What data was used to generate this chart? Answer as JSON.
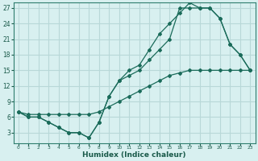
{
  "xlabel": "Humidex (Indice chaleur)",
  "bg_color": "#d8f0f0",
  "grid_color": "#b8d8d8",
  "line_color": "#1a6b5a",
  "xlim": [
    -0.5,
    23.5
  ],
  "ylim": [
    1,
    28
  ],
  "xticks": [
    0,
    1,
    2,
    3,
    4,
    5,
    6,
    7,
    8,
    9,
    10,
    11,
    12,
    13,
    14,
    15,
    16,
    17,
    18,
    19,
    20,
    21,
    22,
    23
  ],
  "yticks": [
    3,
    6,
    9,
    12,
    15,
    18,
    21,
    24,
    27
  ],
  "line1_x": [
    0,
    1,
    2,
    3,
    4,
    5,
    6,
    7,
    8,
    9,
    10,
    11,
    12,
    13,
    14,
    15,
    16,
    17,
    18,
    19,
    20,
    21,
    22,
    23
  ],
  "line1_y": [
    7,
    6,
    6,
    5,
    4,
    3,
    3,
    2,
    5,
    10,
    13,
    14,
    15,
    17,
    19,
    21,
    27,
    27,
    27,
    27,
    25,
    20,
    18,
    15
  ],
  "line2_x": [
    0,
    1,
    2,
    3,
    4,
    5,
    6,
    7,
    8,
    9,
    10,
    11,
    12,
    13,
    14,
    15,
    16,
    17,
    18,
    19,
    20,
    21,
    22,
    23
  ],
  "line2_y": [
    7,
    6,
    6,
    5,
    4,
    3,
    3,
    2,
    5,
    10,
    13,
    15,
    16,
    19,
    22,
    24,
    26,
    28,
    27,
    27,
    25,
    20,
    18,
    15
  ],
  "line3_x": [
    0,
    1,
    2,
    3,
    4,
    5,
    6,
    7,
    8,
    9,
    10,
    11,
    12,
    13,
    14,
    15,
    16,
    17,
    18,
    19,
    20,
    21,
    22,
    23
  ],
  "line3_y": [
    7,
    6.5,
    6.5,
    6.5,
    6.5,
    6.5,
    6.5,
    6.5,
    7,
    8,
    9,
    10,
    11,
    12,
    13,
    14,
    14.5,
    15,
    15,
    15,
    15,
    15,
    15,
    15
  ]
}
